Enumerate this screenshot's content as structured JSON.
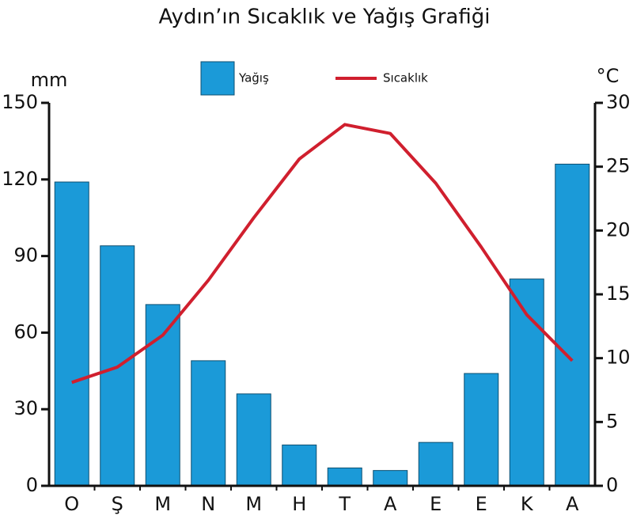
{
  "chart_data": {
    "type": "bar",
    "title": "Aydın’ın Sıcaklık ve Yağış Grafiği",
    "ylabel": "mm",
    "y2label": "°C",
    "categories": [
      "O",
      "Ş",
      "M",
      "N",
      "M",
      "H",
      "T",
      "A",
      "E",
      "E",
      "K",
      "A"
    ],
    "series": [
      {
        "name": "Yağış",
        "type": "bar",
        "color": "#1b9ad8",
        "values": [
          119,
          94,
          71,
          49,
          36,
          16,
          7,
          6,
          17,
          44,
          81,
          126
        ]
      },
      {
        "name": "Sıcaklık",
        "type": "line",
        "axis": "y2",
        "color": "#d01f2e",
        "values": [
          8.1,
          9.3,
          11.8,
          16.1,
          21.0,
          25.6,
          28.3,
          27.6,
          23.7,
          18.7,
          13.4,
          9.8
        ]
      }
    ],
    "ylim": [
      0,
      150
    ],
    "yticks": [
      0,
      30,
      60,
      90,
      120,
      150
    ],
    "y2lim": [
      0,
      30
    ],
    "y2ticks": [
      0,
      5,
      10,
      15,
      20,
      25,
      30
    ]
  }
}
